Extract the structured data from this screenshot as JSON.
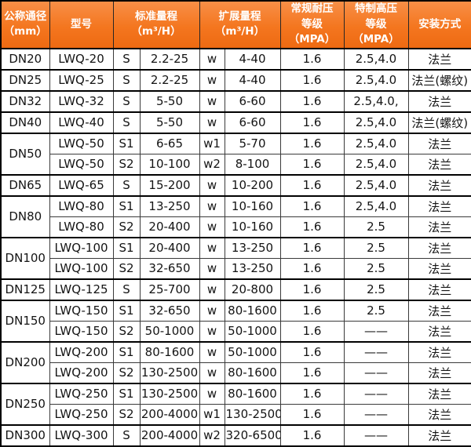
{
  "colors": {
    "header_bg": "#f4761f",
    "header_bg_top": "#f88f47",
    "header_bg_bottom": "#ee6a12",
    "header_text": "#ffffff",
    "cell_bg": "#ffffff",
    "cell_text": "#141414",
    "border": "#000000"
  },
  "chart_data": {
    "type": "table",
    "headers": {
      "dn": [
        "公称通径",
        "（mm）"
      ],
      "model": [
        "型号"
      ],
      "std": [
        "标准量程",
        "（m³/H）"
      ],
      "ext": [
        "扩展量程",
        "（m³/H）"
      ],
      "normal_mpa": [
        "常规耐压",
        "等级（MPA）"
      ],
      "high_mpa": [
        "特制高压",
        "等级（MPA）"
      ],
      "install": [
        "安装方式"
      ]
    },
    "groups": [
      {
        "dn": "DN20",
        "rows": [
          [
            "LWQ-20",
            "S",
            "2.2-25",
            "w",
            "4-40",
            "1.6",
            "2.5,4.0",
            "法兰"
          ]
        ]
      },
      {
        "dn": "DN25",
        "rows": [
          [
            "LWQ-25",
            "S",
            "2.2-25",
            "w",
            "4-40",
            "1.6",
            "2.5,4.0",
            "法兰(螺纹)"
          ]
        ]
      },
      {
        "dn": "DN32",
        "rows": [
          [
            "LWQ-32",
            "S",
            "5-50",
            "w",
            "6-60",
            "1.6",
            "2.5,4.0,",
            "法兰"
          ]
        ]
      },
      {
        "dn": "DN40",
        "rows": [
          [
            "LWQ-40",
            "S",
            "5-50",
            "w",
            "6-60",
            "1.6",
            "2.5,4.0",
            "法兰(螺纹)"
          ]
        ]
      },
      {
        "dn": "DN50",
        "rows": [
          [
            "LWQ-50",
            "S1",
            "6-65",
            "w1",
            "5-70",
            "1.6",
            "2.5,4.0",
            "法兰"
          ],
          [
            "LWQ-50",
            "S2",
            "10-100",
            "w2",
            "8-100",
            "1.6",
            "2.5,4.0",
            "法兰"
          ]
        ]
      },
      {
        "dn": "DN65",
        "rows": [
          [
            "LWQ-65",
            "S",
            "15-200",
            "w",
            "10-200",
            "1.6",
            "2.5,4.0",
            "法兰"
          ]
        ]
      },
      {
        "dn": "DN80",
        "rows": [
          [
            "LWQ-80",
            "S1",
            "13-250",
            "w",
            "10-160",
            "1.6",
            "2.5,4.0",
            "法兰"
          ],
          [
            "LWQ-80",
            "S2",
            "20-400",
            "w",
            "10-160",
            "1.6",
            "2.5",
            "法兰"
          ]
        ]
      },
      {
        "dn": "DN100",
        "rows": [
          [
            "LWQ-100",
            "S1",
            "20-400",
            "w",
            "13-250",
            "1.6",
            "2.5",
            "法兰"
          ],
          [
            "LWQ-100",
            "S2",
            "32-650",
            "w",
            "13-250",
            "1.6",
            "2.5",
            "法兰"
          ]
        ]
      },
      {
        "dn": "DN125",
        "rows": [
          [
            "LWQ-125",
            "S",
            "25-700",
            "w",
            "20-800",
            "1.6",
            "2.5",
            "法兰"
          ]
        ]
      },
      {
        "dn": "DN150",
        "rows": [
          [
            "LWQ-150",
            "S1",
            "32-650",
            "w",
            "80-1600",
            "1.6",
            "2.5",
            "法兰"
          ],
          [
            "LWQ-150",
            "S2",
            "50-1000",
            "w",
            "50-1000",
            "1.6",
            "——",
            "法兰"
          ]
        ]
      },
      {
        "dn": "DN200",
        "rows": [
          [
            "LWQ-200",
            "S1",
            "80-1600",
            "w",
            "50-1000",
            "1.6",
            "——",
            "法兰"
          ],
          [
            "LWQ-200",
            "S2",
            "130-2500",
            "w",
            "80-1600",
            "1.6",
            "——",
            "法兰"
          ]
        ]
      },
      {
        "dn": "DN250",
        "rows": [
          [
            "LWQ-250",
            "S1",
            "130-2500",
            "w",
            "80-1600",
            "1.6",
            "——",
            "法兰"
          ],
          [
            "LWQ-250",
            "S2",
            "200-4000",
            "w1",
            "130-2500",
            "1.6",
            "——",
            "法兰"
          ]
        ]
      },
      {
        "dn": "DN300",
        "rows": [
          [
            "LWQ-300",
            "S",
            "200-4000",
            "w2",
            "320-6500",
            "1.6",
            "——",
            "法兰"
          ]
        ]
      }
    ]
  }
}
